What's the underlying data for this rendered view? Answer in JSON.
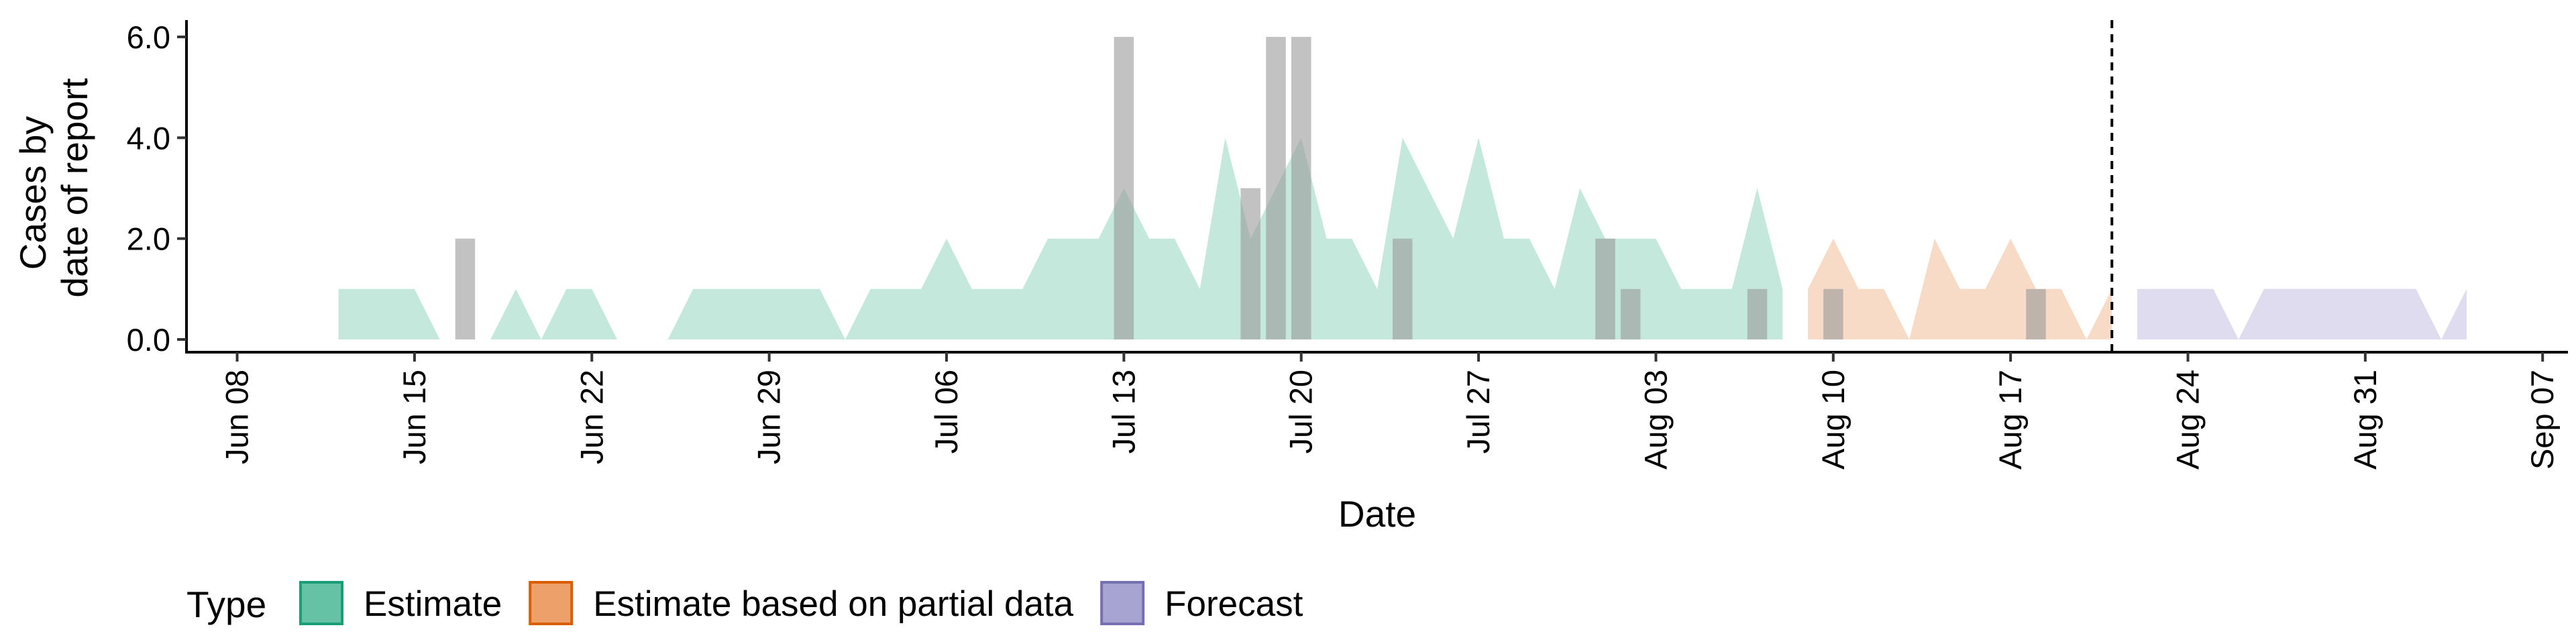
{
  "chart_data": {
    "type": "area",
    "xlabel": "Date",
    "ylabel": [
      "Cases by",
      "date of report"
    ],
    "ylim": [
      0,
      6.0
    ],
    "xlim": [
      "2020-06-06",
      "2020-09-08"
    ],
    "yticks": [
      0,
      2,
      4,
      6
    ],
    "ytick_labels": [
      "0.0",
      "2.0",
      "4.0",
      "6.0"
    ],
    "xticks": [
      "2020-06-08",
      "2020-06-15",
      "2020-06-22",
      "2020-06-29",
      "2020-07-06",
      "2020-07-13",
      "2020-07-20",
      "2020-07-27",
      "2020-08-03",
      "2020-08-10",
      "2020-08-17",
      "2020-08-24",
      "2020-08-31",
      "2020-09-07"
    ],
    "xtick_labels": [
      "Jun 08",
      "Jun 15",
      "Jun 22",
      "Jun 29",
      "Jul 06",
      "Jul 13",
      "Jul 20",
      "Jul 27",
      "Aug 03",
      "Aug 10",
      "Aug 17",
      "Aug 24",
      "Aug 31",
      "Sep 07"
    ],
    "vline": "2020-08-21",
    "legend": {
      "title": "Type",
      "position": "bottom",
      "items": [
        {
          "label": "Estimate",
          "fill": "#66c2a5",
          "stroke": "#1b9e77"
        },
        {
          "label": "Estimate based on partial data",
          "fill": "#eda06a",
          "stroke": "#d95f02"
        },
        {
          "label": "Forecast",
          "fill": "#a8a4d2",
          "stroke": "#7570b3"
        }
      ]
    },
    "series": [
      {
        "name": "Estimate",
        "color": "#1b9e77",
        "x": [
          "2020-06-12",
          "2020-06-13",
          "2020-06-14",
          "2020-06-15",
          "2020-06-16",
          "2020-06-17",
          "2020-06-18",
          "2020-06-19",
          "2020-06-20",
          "2020-06-21",
          "2020-06-22",
          "2020-06-23",
          "2020-06-24",
          "2020-06-25",
          "2020-06-26",
          "2020-06-27",
          "2020-06-28",
          "2020-06-29",
          "2020-06-30",
          "2020-07-01",
          "2020-07-02",
          "2020-07-03",
          "2020-07-04",
          "2020-07-05",
          "2020-07-06",
          "2020-07-07",
          "2020-07-08",
          "2020-07-09",
          "2020-07-10",
          "2020-07-11",
          "2020-07-12",
          "2020-07-13",
          "2020-07-14",
          "2020-07-15",
          "2020-07-16",
          "2020-07-17",
          "2020-07-18",
          "2020-07-19",
          "2020-07-20",
          "2020-07-21",
          "2020-07-22",
          "2020-07-23",
          "2020-07-24",
          "2020-07-25",
          "2020-07-26",
          "2020-07-27",
          "2020-07-28",
          "2020-07-29",
          "2020-07-30",
          "2020-07-31",
          "2020-08-01",
          "2020-08-02",
          "2020-08-03",
          "2020-08-04",
          "2020-08-05",
          "2020-08-06",
          "2020-08-07",
          "2020-08-08"
        ],
        "values": [
          1,
          1,
          1,
          1,
          0,
          0,
          0,
          1,
          0,
          1,
          1,
          0,
          0,
          0,
          1,
          1,
          1,
          1,
          1,
          1,
          0,
          1,
          1,
          1,
          2,
          1,
          1,
          1,
          2,
          2,
          2,
          3,
          2,
          2,
          1,
          4,
          2,
          3,
          4,
          2,
          2,
          1,
          4,
          3,
          2,
          4,
          2,
          2,
          1,
          3,
          2,
          2,
          2,
          1,
          1,
          1,
          3,
          1
        ]
      },
      {
        "name": "Estimate based on partial data",
        "color": "#d95f02",
        "x": [
          "2020-08-09",
          "2020-08-10",
          "2020-08-11",
          "2020-08-12",
          "2020-08-13",
          "2020-08-14",
          "2020-08-15",
          "2020-08-16",
          "2020-08-17",
          "2020-08-18",
          "2020-08-19",
          "2020-08-20",
          "2020-08-21"
        ],
        "values": [
          1,
          2,
          1,
          1,
          0,
          2,
          1,
          1,
          2,
          1,
          1,
          0,
          1
        ]
      },
      {
        "name": "Forecast",
        "color": "#7570b3",
        "x": [
          "2020-08-22",
          "2020-08-23",
          "2020-08-24",
          "2020-08-25",
          "2020-08-26",
          "2020-08-27",
          "2020-08-28",
          "2020-08-29",
          "2020-08-30",
          "2020-08-31",
          "2020-09-01",
          "2020-09-02",
          "2020-09-03",
          "2020-09-04"
        ],
        "values": [
          1,
          1,
          1,
          1,
          0,
          1,
          1,
          1,
          1,
          1,
          1,
          1,
          0,
          1
        ]
      }
    ],
    "observed_bars": {
      "color": "#999999",
      "x": [
        "2020-06-17",
        "2020-07-13",
        "2020-07-18",
        "2020-07-19",
        "2020-07-20",
        "2020-07-24",
        "2020-08-01",
        "2020-08-02",
        "2020-08-07",
        "2020-08-10",
        "2020-08-18"
      ],
      "values": [
        2,
        6,
        3,
        6,
        6,
        2,
        2,
        1,
        1,
        1,
        1
      ]
    }
  }
}
